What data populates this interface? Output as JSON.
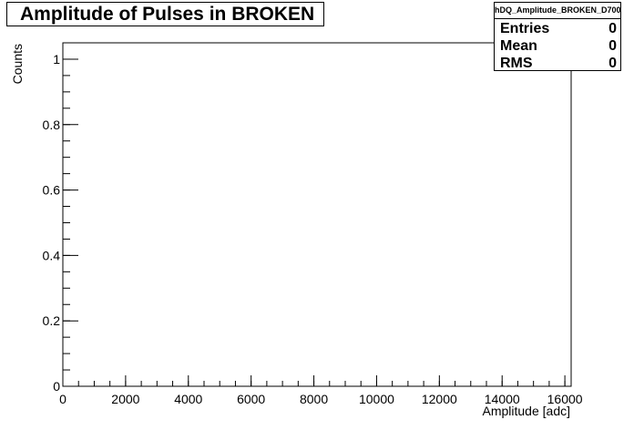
{
  "title": "Amplitude of Pulses in BROKEN",
  "stats": {
    "name": "hDQ_Amplitude_BROKEN_D700",
    "rows": [
      {
        "label": "Entries",
        "value": "0"
      },
      {
        "label": "Mean",
        "value": "0"
      },
      {
        "label": "RMS",
        "value": "0"
      }
    ]
  },
  "chart_data": {
    "type": "bar",
    "title": "Amplitude of Pulses in BROKEN",
    "xlabel": "Amplitude [adc]",
    "ylabel": "Counts",
    "xlim": [
      0,
      16200
    ],
    "ylim": [
      0,
      1.05
    ],
    "x_ticks": [
      0,
      2000,
      4000,
      6000,
      8000,
      10000,
      12000,
      14000,
      16000
    ],
    "x_tick_labels": [
      "0",
      "2000",
      "4000",
      "6000",
      "8000",
      "10000",
      "12000",
      "14000",
      "16000"
    ],
    "y_ticks": [
      0,
      0.2,
      0.4,
      0.6,
      0.8,
      1
    ],
    "y_tick_labels": [
      "0",
      "0.2",
      "0.4",
      "0.6",
      "0.8",
      "1"
    ],
    "x_minor_step": 500,
    "y_minor_step": 0.05,
    "grid": false,
    "legend": "top-right",
    "series": [
      {
        "values": []
      }
    ]
  }
}
